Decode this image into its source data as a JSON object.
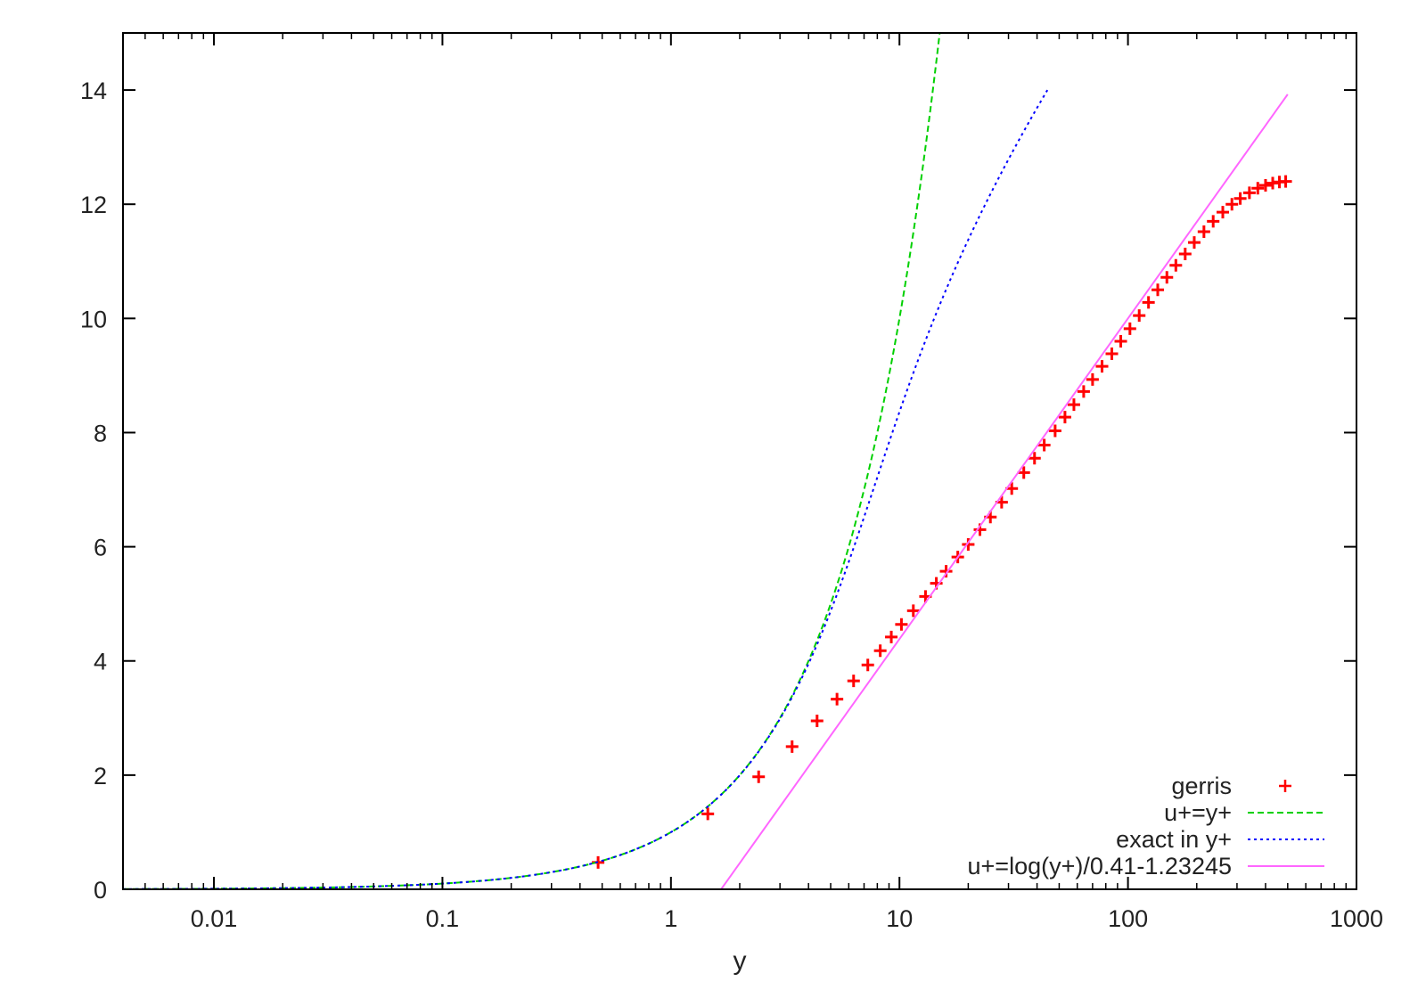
{
  "chart_data": {
    "type": "line",
    "title": "",
    "xlabel": "y",
    "ylabel": "",
    "x_scale": "log",
    "xlim": [
      0.004,
      1000
    ],
    "ylim": [
      0,
      15
    ],
    "x_ticks": [
      {
        "value": 0.01,
        "label": "0.01"
      },
      {
        "value": 0.1,
        "label": "0.1"
      },
      {
        "value": 1,
        "label": "1"
      },
      {
        "value": 10,
        "label": "10"
      },
      {
        "value": 100,
        "label": "100"
      },
      {
        "value": 1000,
        "label": "1000"
      }
    ],
    "y_ticks": [
      {
        "value": 0,
        "label": "0"
      },
      {
        "value": 2,
        "label": "2"
      },
      {
        "value": 4,
        "label": "4"
      },
      {
        "value": 6,
        "label": "6"
      },
      {
        "value": 8,
        "label": "8"
      },
      {
        "value": 10,
        "label": "10"
      },
      {
        "value": 12,
        "label": "12"
      },
      {
        "value": 14,
        "label": "14"
      }
    ],
    "grid": false,
    "legend_position": "bottom-right",
    "series": [
      {
        "name": "gerris",
        "style": "points",
        "marker": "plus",
        "color": "#ff0000",
        "x": [
          0.48,
          1.45,
          2.42,
          3.39,
          4.36,
          5.33,
          6.3,
          7.27,
          8.24,
          9.21,
          10.2,
          11.5,
          13,
          14.5,
          16,
          18,
          20,
          22.5,
          25,
          28,
          31,
          35,
          39,
          43,
          48,
          53,
          58,
          64,
          70,
          77,
          85,
          93,
          102,
          112,
          123,
          135,
          148,
          162,
          178,
          195,
          215,
          236,
          260,
          285,
          310,
          340,
          370,
          400,
          430,
          460,
          490
        ],
        "y": [
          0.47,
          1.32,
          1.97,
          2.5,
          2.95,
          3.33,
          3.65,
          3.93,
          4.18,
          4.42,
          4.64,
          4.88,
          5.13,
          5.36,
          5.57,
          5.82,
          6.04,
          6.3,
          6.52,
          6.78,
          7.02,
          7.3,
          7.55,
          7.78,
          8.03,
          8.27,
          8.49,
          8.72,
          8.93,
          9.16,
          9.38,
          9.6,
          9.82,
          10.05,
          10.28,
          10.5,
          10.72,
          10.93,
          11.13,
          11.33,
          11.52,
          11.7,
          11.86,
          12.0,
          12.1,
          12.2,
          12.28,
          12.33,
          12.37,
          12.39,
          12.4
        ]
      },
      {
        "name": "u+=y+",
        "style": "dashed",
        "color": "#00d000",
        "formula": "u+ = y+",
        "x_range": [
          0.004,
          15
        ]
      },
      {
        "name": "exact in y+",
        "style": "dotted",
        "color": "#0000ff",
        "formula": "y+ = u+ + e^(-kB)(e^(k u+) - 1 - k u+ - (k u+)^2/2 - (k u+)^3/6), k=0.41, B=5.2",
        "x_range": [
          0.004,
          500
        ]
      },
      {
        "name": "u+=log(y+)/0.41-1.23245",
        "style": "solid",
        "color": "#ff66ff",
        "formula": "u+ = ln(y+)/0.41 - 1.23245",
        "x_range": [
          1.66,
          500
        ]
      }
    ]
  }
}
